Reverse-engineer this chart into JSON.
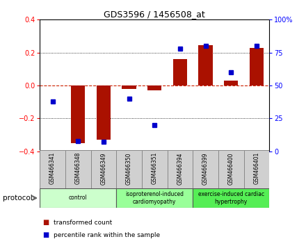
{
  "title": "GDS3596 / 1456508_at",
  "samples": [
    "GSM466341",
    "GSM466348",
    "GSM466349",
    "GSM466350",
    "GSM466351",
    "GSM466394",
    "GSM466399",
    "GSM466400",
    "GSM466401"
  ],
  "transformed_count": [
    0.0,
    -0.35,
    -0.33,
    -0.02,
    -0.03,
    0.16,
    0.245,
    0.03,
    0.23
  ],
  "percentile_rank": [
    38,
    8,
    7,
    40,
    20,
    78,
    80,
    60,
    80
  ],
  "groups": [
    {
      "label": "control",
      "start": 0,
      "end": 3,
      "color": "#ccffcc"
    },
    {
      "label": "isoproterenol-induced\ncardiomyopathy",
      "start": 3,
      "end": 6,
      "color": "#99ff99"
    },
    {
      "label": "exercise-induced cardiac\nhypertrophy",
      "start": 6,
      "end": 9,
      "color": "#55ee55"
    }
  ],
  "ylim_left": [
    -0.4,
    0.4
  ],
  "ylim_right": [
    0,
    100
  ],
  "yticks_left": [
    -0.4,
    -0.2,
    0.0,
    0.2,
    0.4
  ],
  "yticks_right": [
    0,
    25,
    50,
    75,
    100
  ],
  "bar_color": "#aa1100",
  "dot_color": "#0000cc",
  "background_color": "#ffffff",
  "plot_bg_color": "#ffffff",
  "zero_line_color": "#cc2200",
  "protocol_label": "protocol"
}
